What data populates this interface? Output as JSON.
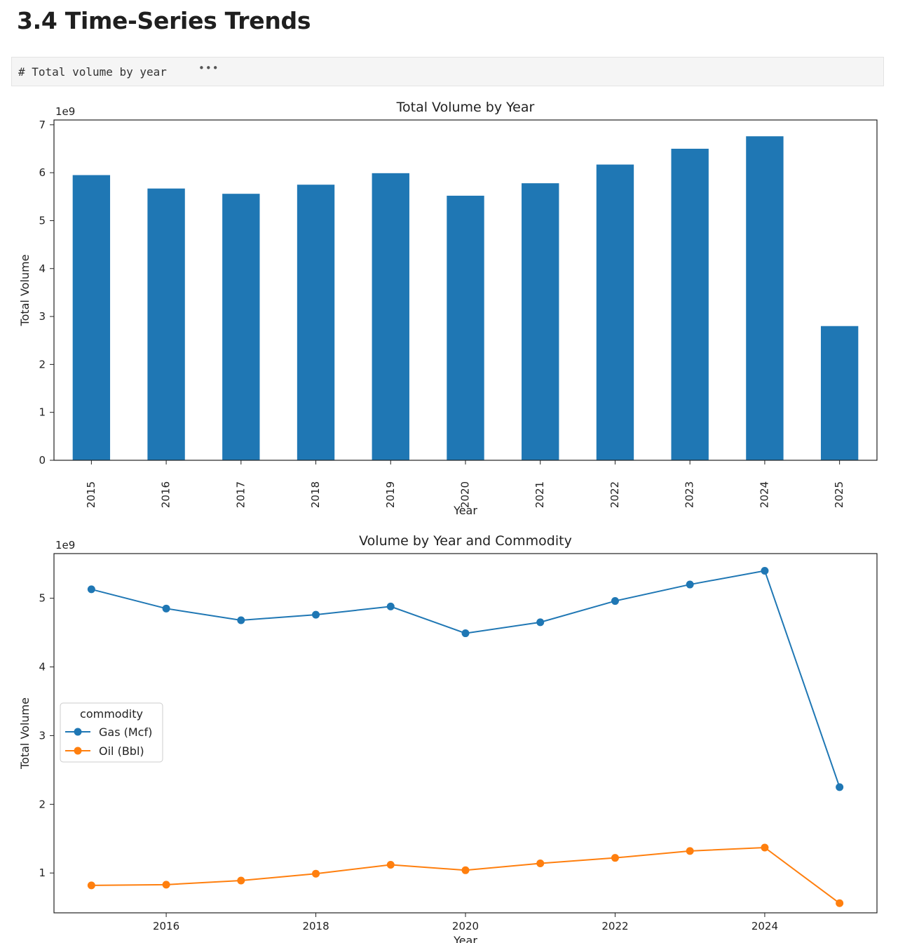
{
  "notebook": {
    "section_heading": "3.4 Time-Series Trends",
    "code_cell": {
      "collapsed_source": "# Total volume by year",
      "ellipsis": "•••"
    }
  },
  "chart_data": [
    {
      "type": "bar",
      "title": "Total Volume by Year",
      "xlabel": "Year",
      "ylabel": "Total Volume",
      "offset_label": "1e9",
      "categories": [
        "2015",
        "2016",
        "2017",
        "2018",
        "2019",
        "2020",
        "2021",
        "2022",
        "2023",
        "2024",
        "2025"
      ],
      "values": [
        5950000000.0,
        5670000000.0,
        5560000000.0,
        5750000000.0,
        5990000000.0,
        5520000000.0,
        5780000000.0,
        6170000000.0,
        6500000000.0,
        6760000000.0,
        2800000000.0
      ],
      "yticks": [
        "0",
        "1",
        "2",
        "3",
        "4",
        "5",
        "6",
        "7"
      ],
      "ylim": [
        0,
        7100000000.0
      ],
      "color": "#1f77b4",
      "grid": false
    },
    {
      "type": "line",
      "title": "Volume by Year and Commodity",
      "xlabel": "Year",
      "ylabel": "Total Volume",
      "offset_label": "1e9",
      "x": [
        2015,
        2016,
        2017,
        2018,
        2019,
        2020,
        2021,
        2022,
        2023,
        2024,
        2025
      ],
      "xticks": [
        "2016",
        "2018",
        "2020",
        "2022",
        "2024"
      ],
      "yticks": [
        "1",
        "2",
        "3",
        "4",
        "5"
      ],
      "xlim": [
        2014.5,
        2025.5
      ],
      "ylim": [
        420000000.0,
        5650000000.0
      ],
      "legend": {
        "title": "commodity",
        "placement": "center-left"
      },
      "series": [
        {
          "name": "Gas (Mcf)",
          "color": "#1f77b4",
          "values": [
            5130000000.0,
            4850000000.0,
            4680000000.0,
            4760000000.0,
            4880000000.0,
            4490000000.0,
            4650000000.0,
            4960000000.0,
            5200000000.0,
            5400000000.0,
            2250000000.0
          ]
        },
        {
          "name": "Oil (Bbl)",
          "color": "#ff7f0e",
          "values": [
            820000000.0,
            830000000.0,
            890000000.0,
            990000000.0,
            1120000000.0,
            1040000000.0,
            1140000000.0,
            1220000000.0,
            1320000000.0,
            1370000000.0,
            560000000.0
          ]
        }
      ],
      "grid": false
    }
  ]
}
